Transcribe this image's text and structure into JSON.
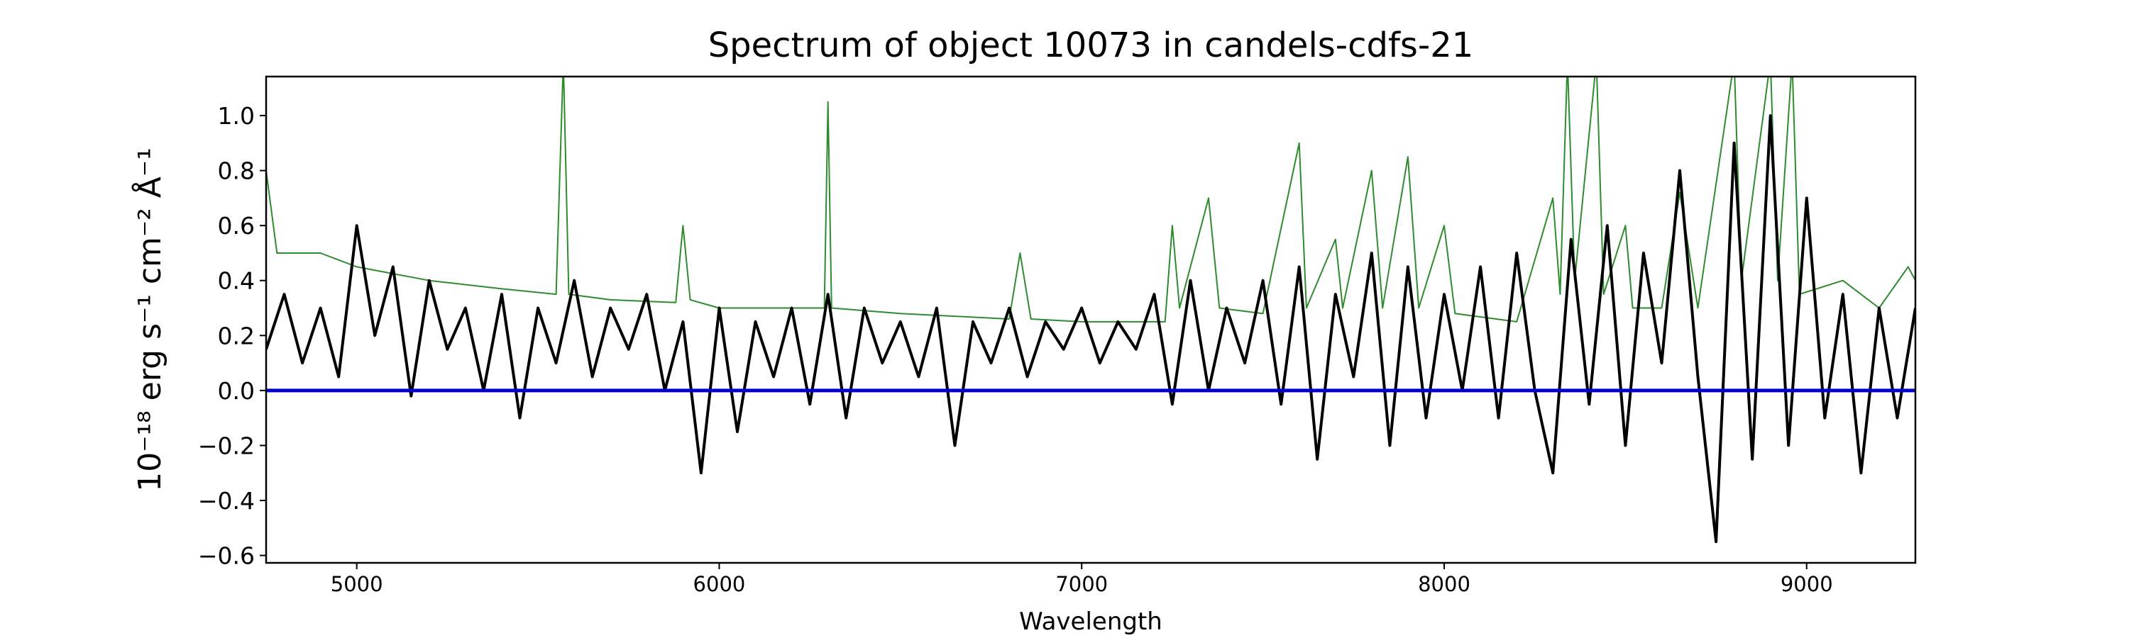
{
  "chart_data": {
    "type": "line",
    "title": "Spectrum of object 10073 in candels-cdfs-21",
    "xlabel": "Wavelength",
    "ylabel": "10⁻¹⁸ erg s⁻¹ cm⁻² Å⁻¹",
    "xlim": [
      4750,
      9300
    ],
    "ylim": [
      -0.627,
      1.142
    ],
    "xticks": [
      5000,
      6000,
      7000,
      8000,
      9000
    ],
    "yticks": [
      {
        "value": -0.6,
        "label": "−0.6"
      },
      {
        "value": -0.4,
        "label": "−0.4"
      },
      {
        "value": -0.2,
        "label": "−0.2"
      },
      {
        "value": 0,
        "label": "0.0"
      },
      0.2,
      0.4,
      0.6,
      0.8,
      {
        "value": 1,
        "label": "1.0"
      }
    ],
    "grid": false,
    "series": [
      {
        "color": "#2e8b2e",
        "width": 2,
        "x": [
          4750,
          4780,
          4900,
          5000,
          5200,
          5400,
          5550,
          5570,
          5585,
          5700,
          5880,
          5900,
          5920,
          6000,
          6200,
          6290,
          6300,
          6310,
          6500,
          6800,
          6830,
          6860,
          7000,
          7230,
          7250,
          7270,
          7350,
          7380,
          7500,
          7600,
          7620,
          7700,
          7720,
          7800,
          7830,
          7900,
          7930,
          8000,
          8030,
          8200,
          8300,
          8320,
          8340,
          8360,
          8420,
          8440,
          8500,
          8520,
          8600,
          8650,
          8700,
          8800,
          8820,
          8900,
          8920,
          8960,
          8980,
          9100,
          9200,
          9280,
          9300
        ],
        "values": [
          0.8,
          0.5,
          0.5,
          0.45,
          0.4,
          0.37,
          0.35,
          1.2,
          0.35,
          0.33,
          0.32,
          0.6,
          0.33,
          0.3,
          0.3,
          0.3,
          1.05,
          0.3,
          0.28,
          0.26,
          0.5,
          0.26,
          0.25,
          0.25,
          0.6,
          0.3,
          0.7,
          0.3,
          0.28,
          0.9,
          0.3,
          0.55,
          0.3,
          0.8,
          0.3,
          0.85,
          0.3,
          0.6,
          0.28,
          0.25,
          0.7,
          0.35,
          1.2,
          0.4,
          1.2,
          0.35,
          0.6,
          0.3,
          0.3,
          0.72,
          0.3,
          1.2,
          0.4,
          1.2,
          0.4,
          1.2,
          0.35,
          0.4,
          0.3,
          0.45,
          0.4
        ]
      },
      {
        "color": "#000000",
        "width": 4,
        "x": [
          4750,
          4800,
          4850,
          4900,
          4950,
          5000,
          5050,
          5100,
          5150,
          5200,
          5250,
          5300,
          5350,
          5400,
          5450,
          5500,
          5550,
          5600,
          5650,
          5700,
          5750,
          5800,
          5850,
          5900,
          5950,
          6000,
          6050,
          6100,
          6150,
          6200,
          6250,
          6300,
          6350,
          6400,
          6450,
          6500,
          6550,
          6600,
          6650,
          6700,
          6750,
          6800,
          6850,
          6900,
          6950,
          7000,
          7050,
          7100,
          7150,
          7200,
          7250,
          7300,
          7350,
          7400,
          7450,
          7500,
          7550,
          7600,
          7650,
          7700,
          7750,
          7800,
          7850,
          7900,
          7950,
          8000,
          8050,
          8100,
          8150,
          8200,
          8250,
          8300,
          8350,
          8400,
          8450,
          8500,
          8550,
          8600,
          8650,
          8700,
          8750,
          8800,
          8850,
          8900,
          8950,
          9000,
          9050,
          9100,
          9150,
          9200,
          9250,
          9300
        ],
        "values": [
          0.15,
          0.35,
          0.1,
          0.3,
          0.05,
          0.6,
          0.2,
          0.45,
          -0.02,
          0.4,
          0.15,
          0.3,
          0.0,
          0.35,
          -0.1,
          0.3,
          0.1,
          0.4,
          0.05,
          0.3,
          0.15,
          0.35,
          0.0,
          0.25,
          -0.3,
          0.3,
          -0.15,
          0.25,
          0.05,
          0.3,
          -0.05,
          0.35,
          -0.1,
          0.3,
          0.1,
          0.25,
          0.05,
          0.3,
          -0.2,
          0.25,
          0.1,
          0.3,
          0.05,
          0.25,
          0.15,
          0.3,
          0.1,
          0.25,
          0.15,
          0.35,
          -0.05,
          0.4,
          0.0,
          0.3,
          0.1,
          0.4,
          -0.05,
          0.45,
          -0.25,
          0.35,
          0.05,
          0.5,
          -0.2,
          0.45,
          -0.1,
          0.35,
          0.0,
          0.45,
          -0.1,
          0.5,
          0.0,
          -0.3,
          0.55,
          -0.05,
          0.6,
          -0.2,
          0.5,
          0.1,
          0.8,
          0.05,
          -0.55,
          0.9,
          -0.25,
          1.0,
          -0.2,
          0.7,
          -0.1,
          0.35,
          -0.3,
          0.3,
          -0.1,
          0.3
        ]
      },
      {
        "color": "#0000cc",
        "width": 5,
        "x": [
          4750,
          9300
        ],
        "values": [
          0,
          0
        ]
      }
    ]
  }
}
